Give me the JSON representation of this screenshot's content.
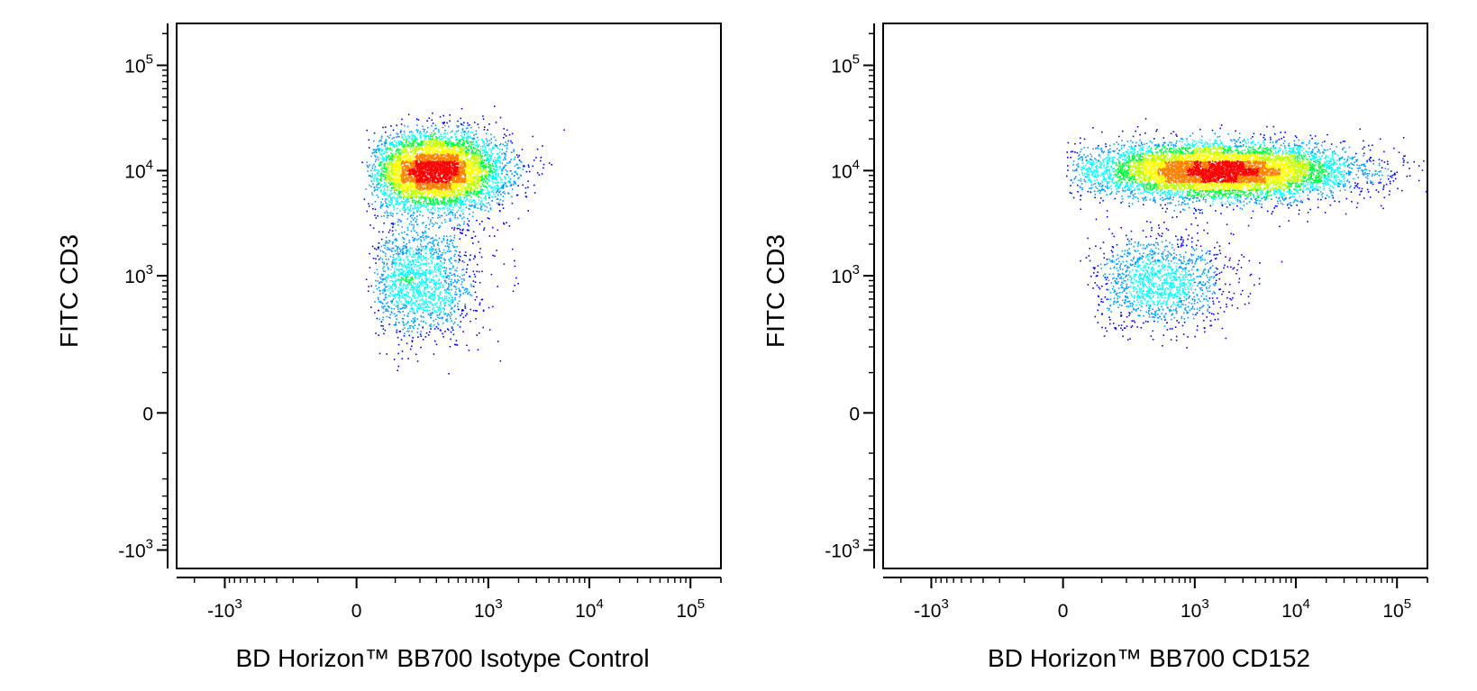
{
  "chart_data": [
    {
      "type": "scatter",
      "style": "density pseudocolor dot plot",
      "xlabel": "BD Horizon™ BB700  Isotype Control",
      "ylabel": "FITC  CD3",
      "x_scale": "biexponential",
      "y_scale": "biexponential",
      "xlim": [
        -3000,
        200000
      ],
      "ylim": [
        -1500,
        250000
      ],
      "x_ticks": [
        {
          "base": "-10",
          "exp": "3"
        },
        {
          "base": "0",
          "exp": ""
        },
        {
          "base": "10",
          "exp": "3"
        },
        {
          "base": "10",
          "exp": "4"
        },
        {
          "base": "10",
          "exp": "5"
        }
      ],
      "y_ticks": [
        {
          "base": "-10",
          "exp": "3"
        },
        {
          "base": "0",
          "exp": ""
        },
        {
          "base": "10",
          "exp": "3"
        },
        {
          "base": "10",
          "exp": "4"
        },
        {
          "base": "10",
          "exp": "5"
        }
      ],
      "populations": [
        {
          "x_center": 300,
          "y_center": 10000,
          "x_spread_decades": 0.35,
          "y_spread_decades": 0.18,
          "count": 5500
        },
        {
          "x_center": 200,
          "y_center": 900,
          "x_spread_decades": 0.3,
          "y_spread_decades": 0.28,
          "count": 1600
        }
      ],
      "grid": false,
      "legend": "none"
    },
    {
      "type": "scatter",
      "style": "density pseudocolor dot plot",
      "xlabel": "BD Horizon™ BB700 CD152",
      "ylabel": "FITC  CD3",
      "x_scale": "biexponential",
      "y_scale": "biexponential",
      "xlim": [
        -3000,
        200000
      ],
      "ylim": [
        -1500,
        250000
      ],
      "x_ticks": [
        {
          "base": "-10",
          "exp": "3"
        },
        {
          "base": "0",
          "exp": ""
        },
        {
          "base": "10",
          "exp": "3"
        },
        {
          "base": "10",
          "exp": "4"
        },
        {
          "base": "10",
          "exp": "5"
        }
      ],
      "y_ticks": [
        {
          "base": "-10",
          "exp": "3"
        },
        {
          "base": "0",
          "exp": ""
        },
        {
          "base": "10",
          "exp": "3"
        },
        {
          "base": "10",
          "exp": "4"
        },
        {
          "base": "10",
          "exp": "5"
        }
      ],
      "populations": [
        {
          "x_center": 1800,
          "y_center": 10000,
          "x_spread_decades": 0.65,
          "y_spread_decades": 0.13,
          "count": 7500
        },
        {
          "x_center": 450,
          "y_center": 900,
          "x_spread_decades": 0.35,
          "y_spread_decades": 0.22,
          "count": 1400
        }
      ],
      "grid": false,
      "legend": "none"
    }
  ],
  "palette": [
    "#0000ff",
    "#00a0ff",
    "#00ffff",
    "#00ff40",
    "#c0ff00",
    "#ffff00",
    "#ff8000",
    "#ff0000"
  ]
}
